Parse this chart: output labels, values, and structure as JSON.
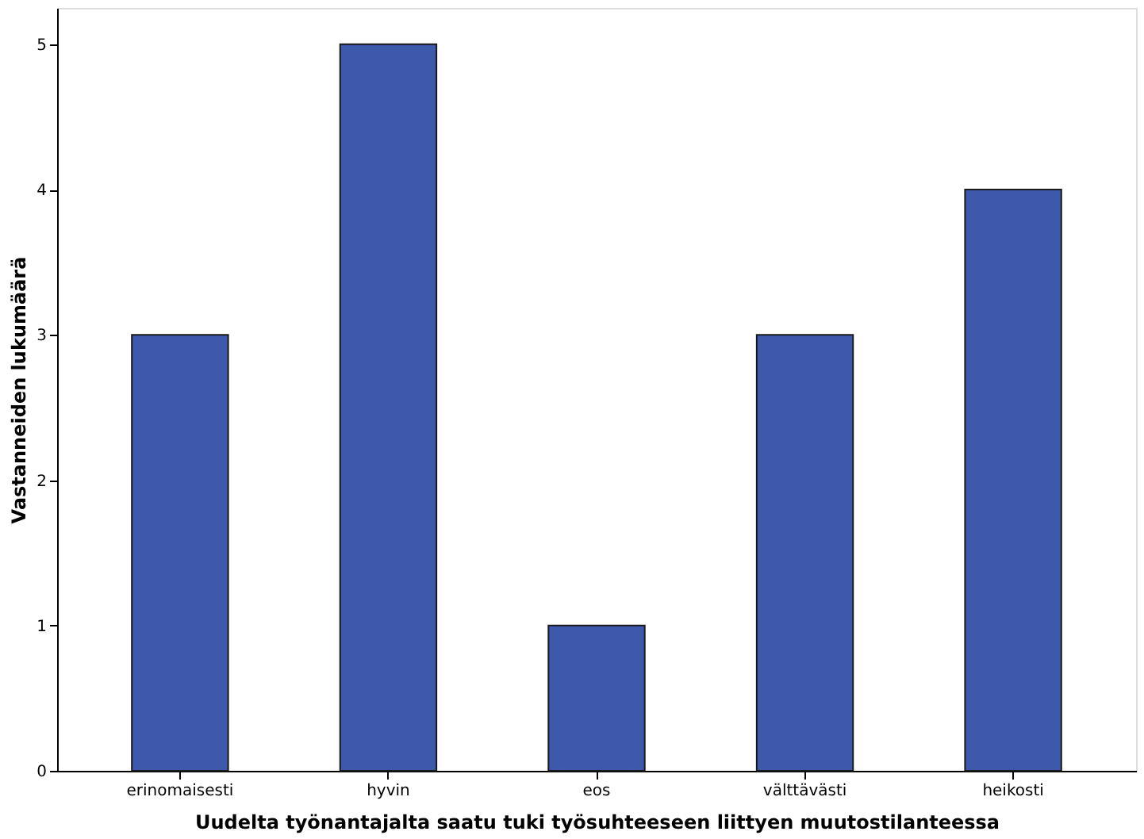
{
  "chart_data": {
    "type": "bar",
    "xlabel": "Uudelta työnantajalta saatu tuki työsuhteeseen liittyen muutostilanteessa",
    "ylabel": "Vastanneiden lukumäärä",
    "categories": [
      "erinomaisesti",
      "hyvin",
      "eos",
      "välttävästi",
      "heikosti"
    ],
    "values": [
      3,
      5,
      1,
      3,
      4
    ],
    "color": "#3e58ac",
    "ylim": [
      0,
      5.25
    ],
    "yticks": [
      0,
      1,
      2,
      3,
      4,
      5
    ],
    "grid": false
  }
}
